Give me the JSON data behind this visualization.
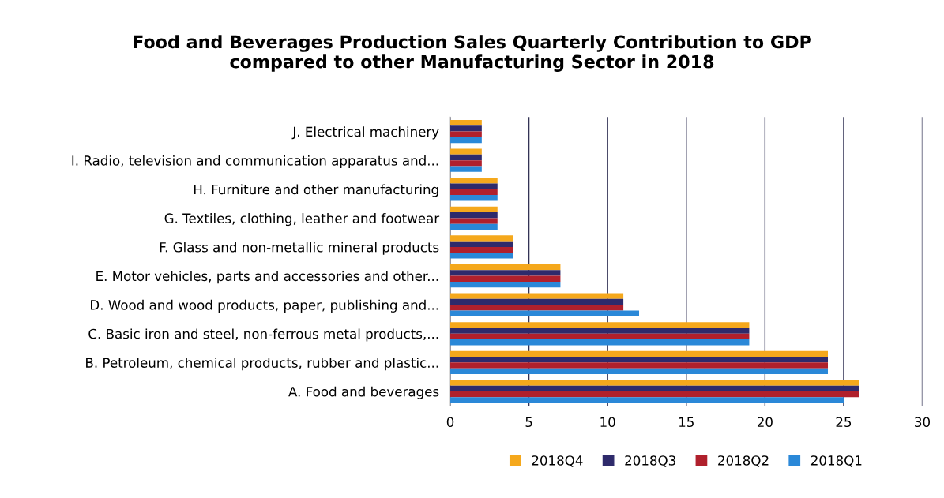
{
  "chart_data": {
    "type": "bar",
    "orientation": "horizontal",
    "title": "Food and Beverages Production Sales Quarterly Contribution to GDP\ncompared to other Manufacturing Sector in 2018",
    "categories": [
      "J. Electrical machinery",
      "I. Radio, television and communication apparatus and...",
      "H. Furniture and other manufacturing",
      "G. Textiles, clothing, leather and footwear",
      "F. Glass and non-metallic mineral products",
      "E. Motor vehicles, parts and accessories and other...",
      "D. Wood and wood products, paper, publishing and...",
      "C. Basic iron and steel, non-ferrous metal products,...",
      "B. Petroleum, chemical products, rubber and plastic...",
      "A. Food and beverages"
    ],
    "series": [
      {
        "name": "2018Q4",
        "color": "#f5a81c",
        "values": [
          2,
          2,
          3,
          3,
          4,
          7,
          11,
          19,
          24,
          26
        ]
      },
      {
        "name": "2018Q3",
        "color": "#2e2a6b",
        "values": [
          2,
          2,
          3,
          3,
          4,
          7,
          11,
          19,
          24,
          26
        ]
      },
      {
        "name": "2018Q2",
        "color": "#b0202c",
        "values": [
          2,
          2,
          3,
          3,
          4,
          7,
          11,
          19,
          24,
          26
        ]
      },
      {
        "name": "2018Q1",
        "color": "#2a88d8",
        "values": [
          2,
          2,
          3,
          3,
          4,
          7,
          12,
          19,
          24,
          25
        ]
      }
    ],
    "xlim": [
      0,
      30
    ],
    "xticks": [
      0,
      5,
      10,
      15,
      20,
      25,
      30
    ],
    "grid": "x",
    "legend": "bottom"
  }
}
